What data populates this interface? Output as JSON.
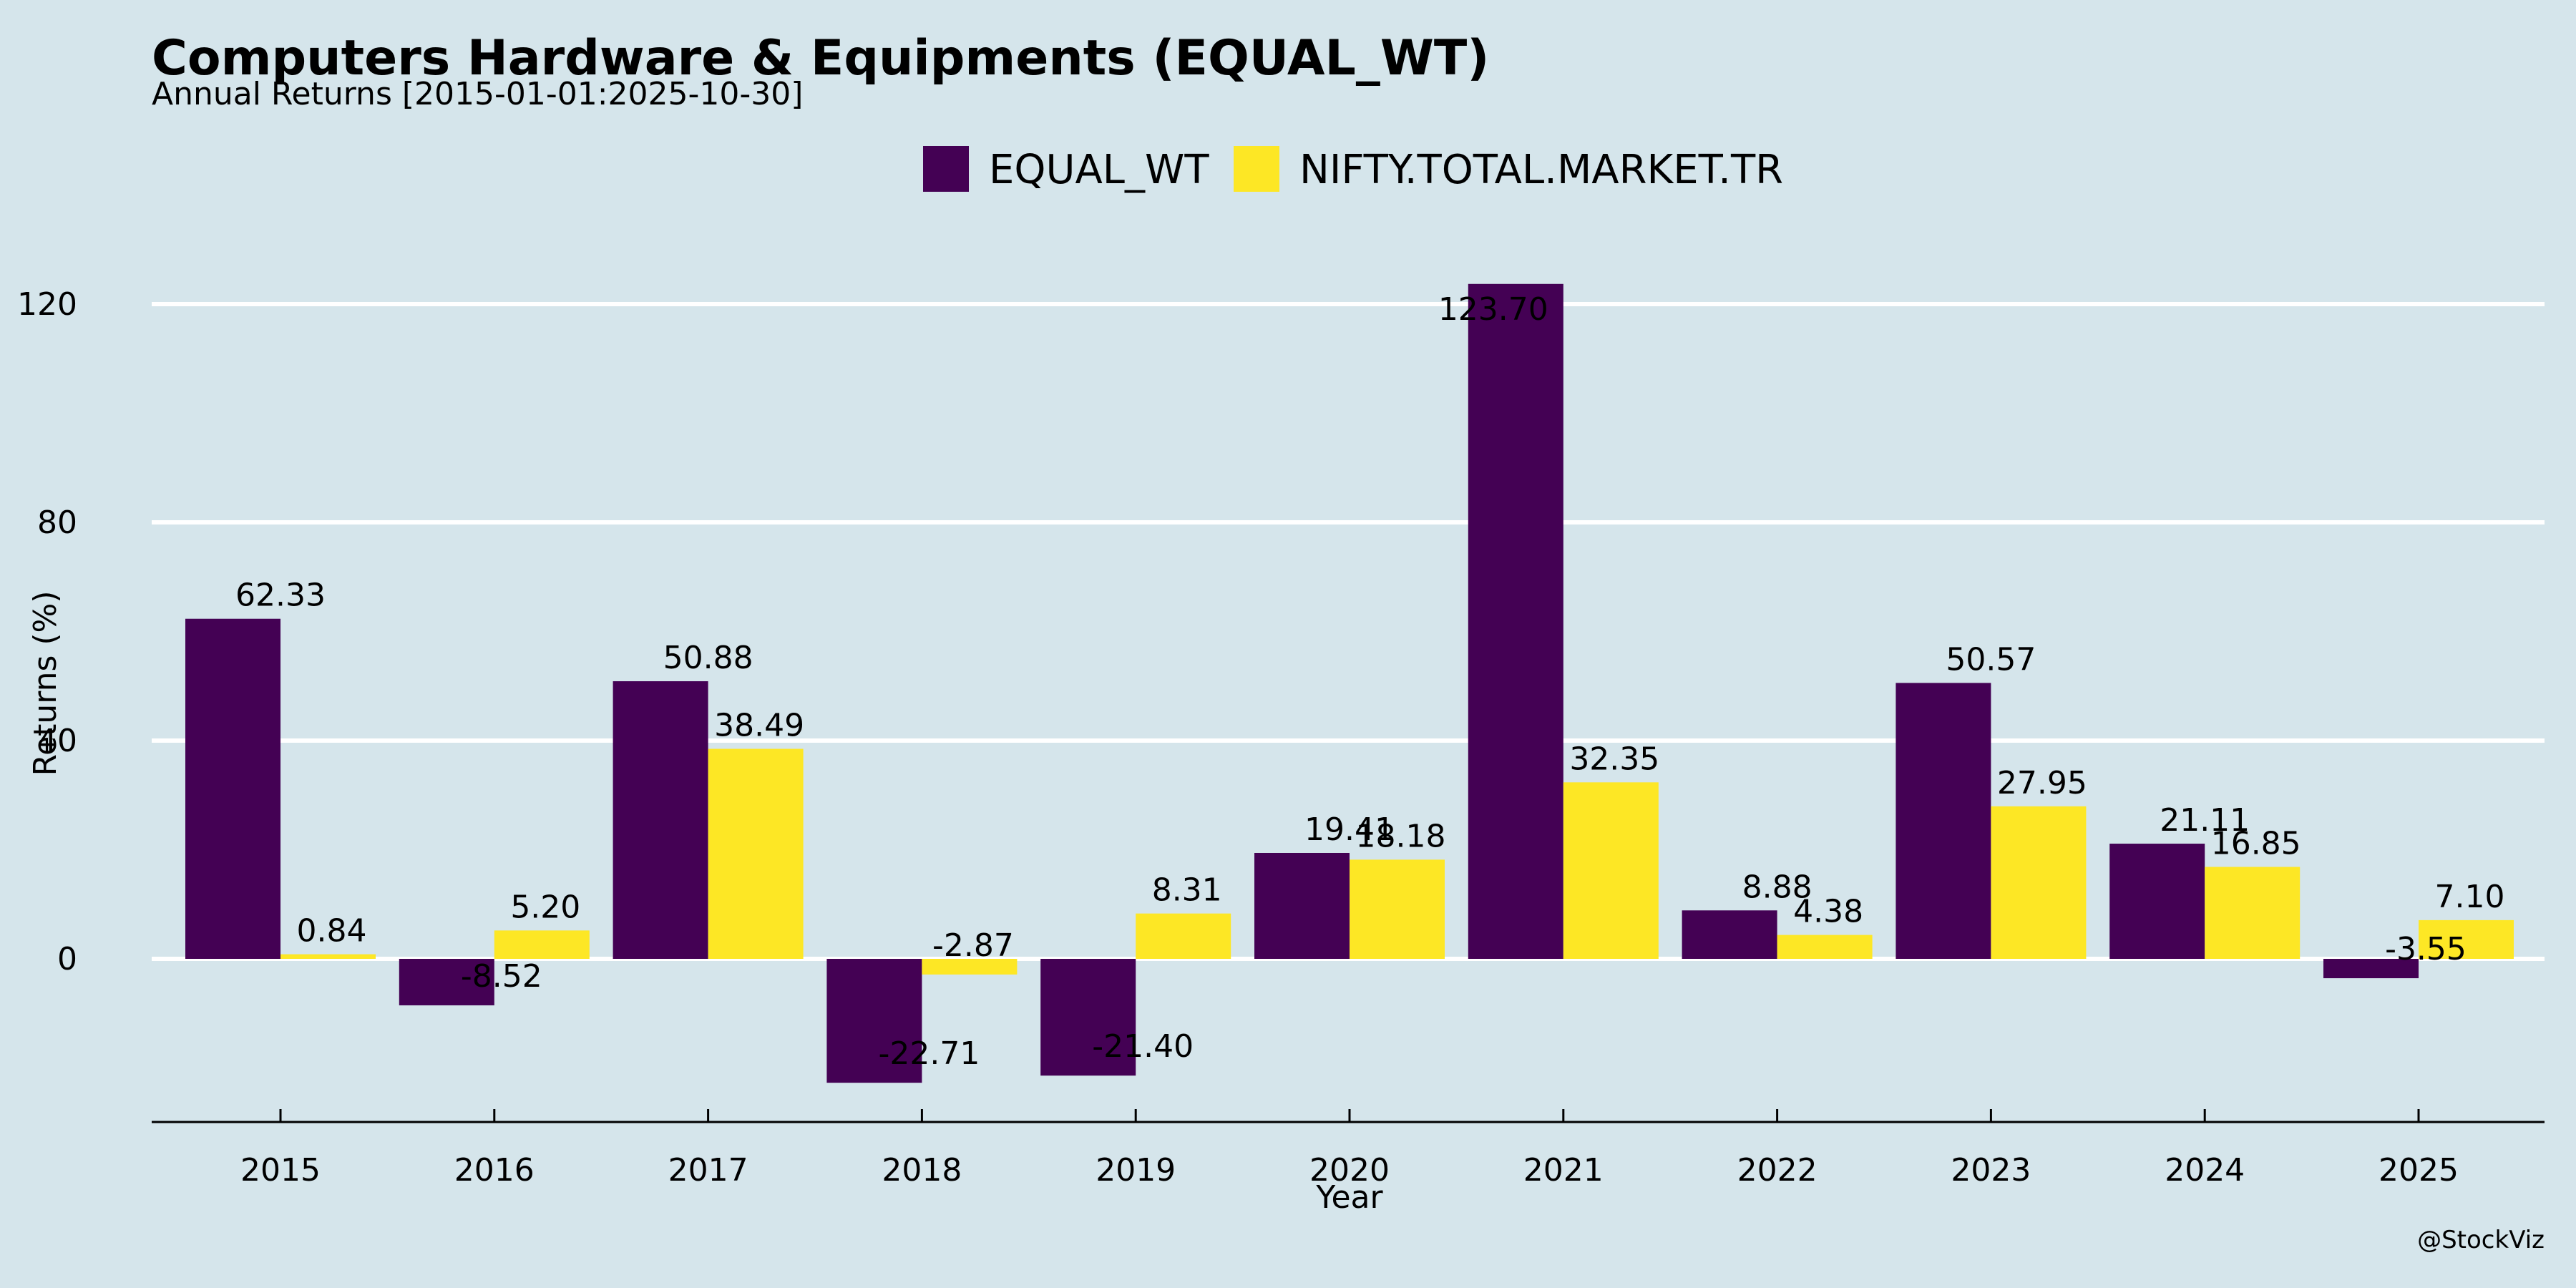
{
  "chart_data": {
    "type": "bar",
    "title": "Computers Hardware & Equipments (EQUAL_WT)",
    "subtitle": "Annual Returns [2015-01-01:2025-10-30]",
    "xlabel": "Year",
    "ylabel": "Returns (%)",
    "categories": [
      "2015",
      "2016",
      "2017",
      "2018",
      "2019",
      "2020",
      "2021",
      "2022",
      "2023",
      "2024",
      "2025"
    ],
    "series": [
      {
        "name": "EQUAL_WT",
        "color": "#440154",
        "values": [
          62.33,
          -8.52,
          50.88,
          -22.71,
          -21.4,
          19.41,
          123.7,
          8.88,
          50.57,
          21.11,
          -3.55
        ],
        "labels": [
          "62.33",
          "-8.52",
          "50.88",
          "-22.71",
          "-21.40",
          "19.41",
          "123.70",
          "8.88",
          "50.57",
          "21.11",
          "-3.55"
        ]
      },
      {
        "name": "NIFTY.TOTAL.MARKET.TR",
        "color": "#fde725",
        "values": [
          0.84,
          5.2,
          38.49,
          -2.87,
          8.31,
          18.18,
          32.35,
          4.38,
          27.95,
          16.85,
          7.1
        ],
        "labels": [
          "0.84",
          "5.20",
          "38.49",
          "-2.87",
          "8.31",
          "18.18",
          "32.35",
          "4.38",
          "27.95",
          "16.85",
          "7.10"
        ]
      }
    ],
    "yticks": [
      0,
      40,
      80,
      120
    ],
    "ytick_labels": [
      "0",
      "40",
      "80",
      "120"
    ],
    "ylim": [
      -30,
      140
    ],
    "grid": true,
    "legend_position": "top-center",
    "caption": "@StockViz"
  }
}
